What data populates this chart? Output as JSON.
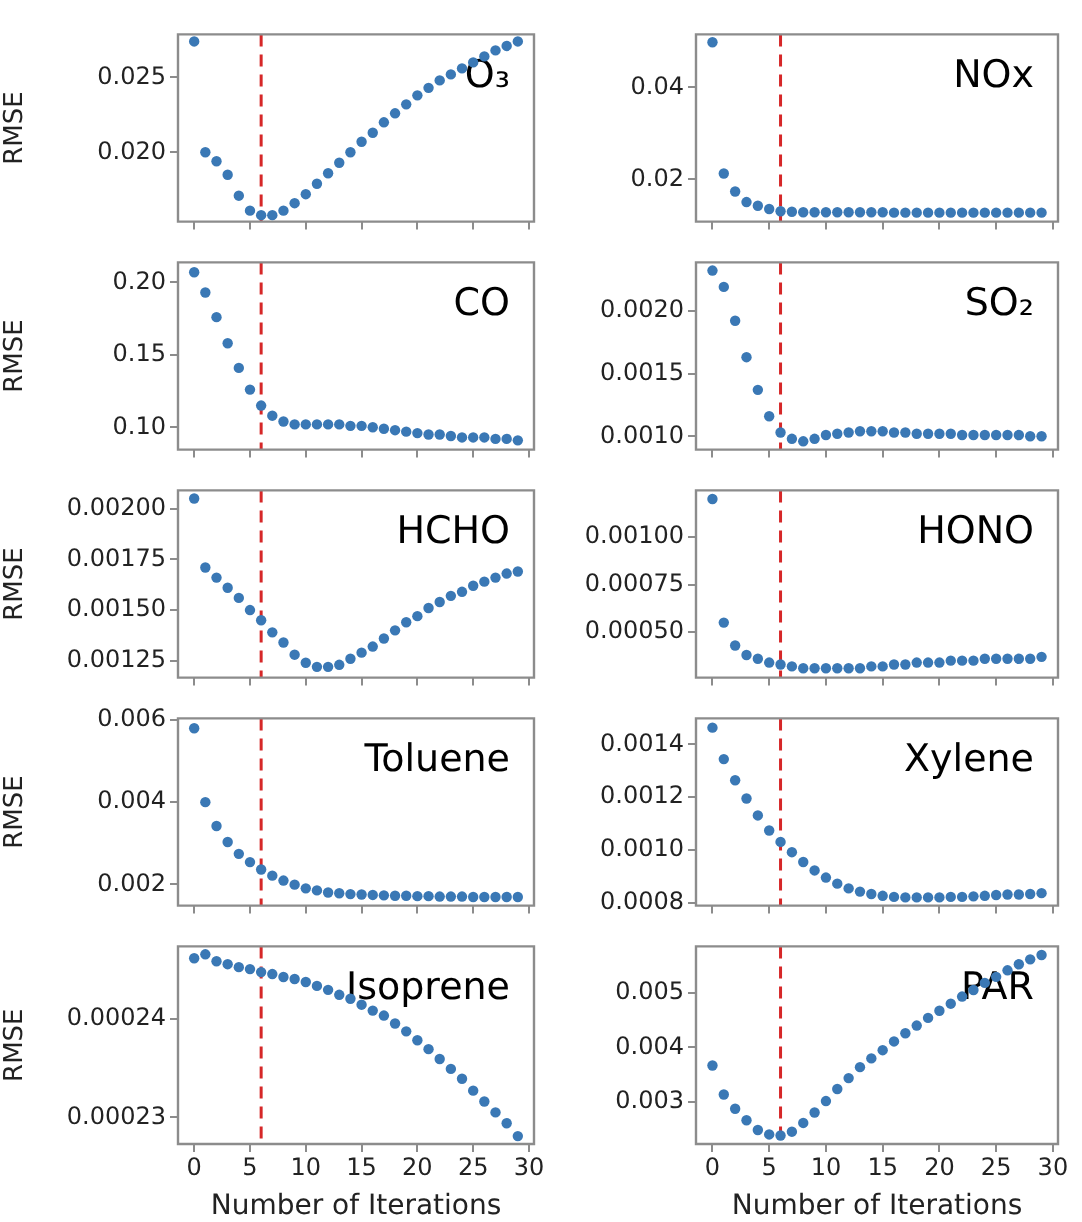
{
  "chart_data": [
    {
      "type": "scatter",
      "ylabel": "RMSE",
      "annotations": [
        "O₃"
      ],
      "tick_labels": "y",
      "marker": "circle",
      "grid": false,
      "legend": false,
      "xlim": [
        -1.45,
        30.45
      ],
      "xticks": [
        0,
        5,
        10,
        15,
        20,
        25,
        30
      ],
      "ylim": [
        0.01537,
        0.02787
      ],
      "yticks": [
        {
          "value": 0.02,
          "label": "0.020"
        },
        {
          "value": 0.025,
          "label": "0.025"
        }
      ],
      "ref_lines": [
        {
          "axis": "x",
          "value": 6,
          "color": "#d62728",
          "line_style": "dashed"
        }
      ],
      "x": [
        0,
        1,
        2,
        3,
        4,
        5,
        6,
        7,
        8,
        9,
        10,
        11,
        12,
        13,
        14,
        15,
        16,
        17,
        18,
        19,
        20,
        21,
        22,
        23,
        24,
        25,
        26,
        27,
        28,
        29
      ],
      "series": [
        {
          "color": "#3a78b5",
          "values": [
            0.0274,
            0.02,
            0.0194,
            0.0185,
            0.0171,
            0.0161,
            0.0158,
            0.0158,
            0.0161,
            0.0166,
            0.0172,
            0.0179,
            0.0186,
            0.0193,
            0.02,
            0.0207,
            0.0213,
            0.022,
            0.0226,
            0.0232,
            0.0238,
            0.0243,
            0.0248,
            0.0252,
            0.0256,
            0.026,
            0.0264,
            0.0268,
            0.0271,
            0.0274
          ]
        }
      ]
    },
    {
      "type": "scatter",
      "annotations": [
        "NOx"
      ],
      "tick_labels": "y",
      "marker": "circle",
      "grid": false,
      "legend": false,
      "xlim": [
        -1.45,
        30.45
      ],
      "xticks": [
        0,
        5,
        10,
        15,
        20,
        25,
        30
      ],
      "ylim": [
        0.01086,
        0.0515
      ],
      "yticks": [
        0.02,
        0.04
      ],
      "ref_lines": [
        {
          "axis": "x",
          "value": 6,
          "color": "#d62728",
          "line_style": "dashed"
        }
      ],
      "x": [
        0,
        1,
        2,
        3,
        4,
        5,
        6,
        7,
        8,
        9,
        10,
        11,
        12,
        13,
        14,
        15,
        16,
        17,
        18,
        19,
        20,
        21,
        22,
        23,
        24,
        25,
        26,
        27,
        28,
        29
      ],
      "series": [
        {
          "color": "#3a78b5",
          "values": [
            0.0498,
            0.0213,
            0.0174,
            0.0151,
            0.0143,
            0.0136,
            0.0131,
            0.013,
            0.0129,
            0.0129,
            0.0129,
            0.0129,
            0.0129,
            0.0129,
            0.0129,
            0.0129,
            0.0128,
            0.0128,
            0.0128,
            0.0128,
            0.0128,
            0.0128,
            0.0128,
            0.0128,
            0.0128,
            0.0128,
            0.0128,
            0.0128,
            0.0128,
            0.0128
          ]
        }
      ]
    },
    {
      "type": "scatter",
      "ylabel": "RMSE",
      "annotations": [
        "CO"
      ],
      "tick_labels": "y",
      "marker": "circle",
      "grid": false,
      "legend": false,
      "xlim": [
        -1.45,
        30.45
      ],
      "xticks": [
        0,
        5,
        10,
        15,
        20,
        25,
        30
      ],
      "ylim": [
        0.0846,
        0.2138
      ],
      "yticks": [
        {
          "value": 0.1,
          "label": "0.10"
        },
        {
          "value": 0.15,
          "label": "0.15"
        },
        {
          "value": 0.2,
          "label": "0.20"
        }
      ],
      "ref_lines": [
        {
          "axis": "x",
          "value": 6,
          "color": "#d62728",
          "line_style": "dashed"
        }
      ],
      "x": [
        0,
        1,
        2,
        3,
        4,
        5,
        6,
        7,
        8,
        9,
        10,
        11,
        12,
        13,
        14,
        15,
        16,
        17,
        18,
        19,
        20,
        21,
        22,
        23,
        24,
        25,
        26,
        27,
        28,
        29
      ],
      "series": [
        {
          "color": "#3a78b5",
          "values": [
            0.207,
            0.193,
            0.176,
            0.158,
            0.141,
            0.126,
            0.115,
            0.108,
            0.104,
            0.102,
            0.102,
            0.102,
            0.102,
            0.102,
            0.101,
            0.101,
            0.1,
            0.099,
            0.098,
            0.097,
            0.096,
            0.095,
            0.095,
            0.094,
            0.093,
            0.093,
            0.093,
            0.092,
            0.092,
            0.091
          ]
        }
      ]
    },
    {
      "type": "scatter",
      "annotations": [
        "SO₂"
      ],
      "tick_labels": "y",
      "marker": "circle",
      "grid": false,
      "legend": false,
      "xlim": [
        -1.45,
        30.45
      ],
      "xticks": [
        0,
        5,
        10,
        15,
        20,
        25,
        30
      ],
      "ylim": [
        0.000894,
        0.002385
      ],
      "yticks": [
        {
          "value": 0.001,
          "label": "0.0010"
        },
        {
          "value": 0.0015,
          "label": "0.0015"
        },
        {
          "value": 0.002,
          "label": "0.0020"
        }
      ],
      "ref_lines": [
        {
          "axis": "x",
          "value": 6,
          "color": "#d62728",
          "line_style": "dashed"
        }
      ],
      "x": [
        0,
        1,
        2,
        3,
        4,
        5,
        6,
        7,
        8,
        9,
        10,
        11,
        12,
        13,
        14,
        15,
        16,
        17,
        18,
        19,
        20,
        21,
        22,
        23,
        24,
        25,
        26,
        27,
        28,
        29
      ],
      "series": [
        {
          "color": "#3a78b5",
          "values": [
            0.00232,
            0.00219,
            0.00192,
            0.00163,
            0.00137,
            0.00116,
            0.00103,
            0.00098,
            0.00096,
            0.00098,
            0.00101,
            0.00102,
            0.00103,
            0.00104,
            0.00104,
            0.00104,
            0.00103,
            0.00103,
            0.00102,
            0.00102,
            0.00102,
            0.00102,
            0.00101,
            0.00101,
            0.00101,
            0.00101,
            0.00101,
            0.00101,
            0.001,
            0.001
          ]
        }
      ]
    },
    {
      "type": "scatter",
      "ylabel": "RMSE",
      "annotations": [
        "HCHO"
      ],
      "tick_labels": "y",
      "marker": "circle",
      "grid": false,
      "legend": false,
      "xlim": [
        -1.45,
        30.45
      ],
      "xticks": [
        0,
        5,
        10,
        15,
        20,
        25,
        30
      ],
      "ylim": [
        0.001167,
        0.00209
      ],
      "yticks": [
        {
          "value": 0.00125,
          "label": "0.00125"
        },
        {
          "value": 0.0015,
          "label": "0.00150"
        },
        {
          "value": 0.00175,
          "label": "0.00175"
        },
        {
          "value": 0.002,
          "label": "0.00200"
        }
      ],
      "ref_lines": [
        {
          "axis": "x",
          "value": 6,
          "color": "#d62728",
          "line_style": "dashed"
        }
      ],
      "x": [
        0,
        1,
        2,
        3,
        4,
        5,
        6,
        7,
        8,
        9,
        10,
        11,
        12,
        13,
        14,
        15,
        16,
        17,
        18,
        19,
        20,
        21,
        22,
        23,
        24,
        25,
        26,
        27,
        28,
        29
      ],
      "series": [
        {
          "color": "#3a78b5",
          "values": [
            0.00205,
            0.00171,
            0.00166,
            0.00161,
            0.00156,
            0.0015,
            0.00145,
            0.00139,
            0.00134,
            0.00128,
            0.00124,
            0.00122,
            0.00122,
            0.00123,
            0.00126,
            0.00129,
            0.00132,
            0.00136,
            0.0014,
            0.00144,
            0.00147,
            0.00151,
            0.00154,
            0.00157,
            0.00159,
            0.00162,
            0.00164,
            0.00166,
            0.00168,
            0.00169
          ]
        }
      ]
    },
    {
      "type": "scatter",
      "annotations": [
        "HONO"
      ],
      "tick_labels": "y",
      "marker": "circle",
      "grid": false,
      "legend": false,
      "xlim": [
        -1.45,
        30.45
      ],
      "xticks": [
        0,
        5,
        10,
        15,
        20,
        25,
        30
      ],
      "ylim": [
        0.000261,
        0.001245
      ],
      "yticks": [
        {
          "value": 0.0005,
          "label": "0.00050"
        },
        {
          "value": 0.00075,
          "label": "0.00075"
        },
        {
          "value": 0.001,
          "label": "0.00100"
        }
      ],
      "ref_lines": [
        {
          "axis": "x",
          "value": 6,
          "color": "#d62728",
          "line_style": "dashed"
        }
      ],
      "x": [
        0,
        1,
        2,
        3,
        4,
        5,
        6,
        7,
        8,
        9,
        10,
        11,
        12,
        13,
        14,
        15,
        16,
        17,
        18,
        19,
        20,
        21,
        22,
        23,
        24,
        25,
        26,
        27,
        28,
        29
      ],
      "series": [
        {
          "color": "#3a78b5",
          "values": [
            0.0012,
            0.00055,
            0.00043,
            0.00038,
            0.00036,
            0.00034,
            0.00033,
            0.00032,
            0.00031,
            0.00031,
            0.00031,
            0.00031,
            0.00031,
            0.00031,
            0.00032,
            0.00032,
            0.00033,
            0.00033,
            0.00034,
            0.00034,
            0.00034,
            0.00035,
            0.00035,
            0.00035,
            0.00036,
            0.00036,
            0.00036,
            0.00036,
            0.00036,
            0.00037
          ]
        }
      ]
    },
    {
      "type": "scatter",
      "ylabel": "RMSE",
      "annotations": [
        "Toluene"
      ],
      "tick_labels": "y",
      "marker": "circle",
      "grid": false,
      "legend": false,
      "xlim": [
        -1.45,
        30.45
      ],
      "xticks": [
        0,
        5,
        10,
        15,
        20,
        25,
        30
      ],
      "ylim": [
        0.00148,
        0.00604
      ],
      "yticks": [
        0.002,
        0.004,
        0.006
      ],
      "ref_lines": [
        {
          "axis": "x",
          "value": 6,
          "color": "#d62728",
          "line_style": "dashed"
        }
      ],
      "x": [
        0,
        1,
        2,
        3,
        4,
        5,
        6,
        7,
        8,
        9,
        10,
        11,
        12,
        13,
        14,
        15,
        16,
        17,
        18,
        19,
        20,
        21,
        22,
        23,
        24,
        25,
        26,
        27,
        28,
        29
      ],
      "series": [
        {
          "color": "#3a78b5",
          "values": [
            0.0058,
            0.004,
            0.00342,
            0.00303,
            0.00274,
            0.00254,
            0.00236,
            0.00221,
            0.00209,
            0.00199,
            0.0019,
            0.00185,
            0.0018,
            0.00178,
            0.00176,
            0.00175,
            0.00174,
            0.00173,
            0.00172,
            0.00172,
            0.00171,
            0.00171,
            0.0017,
            0.0017,
            0.0017,
            0.00169,
            0.00169,
            0.00169,
            0.00169,
            0.00169
          ]
        }
      ]
    },
    {
      "type": "scatter",
      "annotations": [
        "Xylene"
      ],
      "tick_labels": "y",
      "marker": "circle",
      "grid": false,
      "legend": false,
      "xlim": [
        -1.45,
        30.45
      ],
      "xticks": [
        0,
        5,
        10,
        15,
        20,
        25,
        30
      ],
      "ylim": [
        0.00079,
        0.001498
      ],
      "yticks": [
        {
          "value": 0.0008,
          "label": "0.0008"
        },
        {
          "value": 0.001,
          "label": "0.0010"
        },
        {
          "value": 0.0012,
          "label": "0.0012"
        },
        {
          "value": 0.0014,
          "label": "0.0014"
        }
      ],
      "ref_lines": [
        {
          "axis": "x",
          "value": 6,
          "color": "#d62728",
          "line_style": "dashed"
        }
      ],
      "x": [
        0,
        1,
        2,
        3,
        4,
        5,
        6,
        7,
        8,
        9,
        10,
        11,
        12,
        13,
        14,
        15,
        16,
        17,
        18,
        19,
        20,
        21,
        22,
        23,
        24,
        25,
        26,
        27,
        28,
        29
      ],
      "series": [
        {
          "color": "#3a78b5",
          "values": [
            0.001463,
            0.001344,
            0.001264,
            0.001195,
            0.001131,
            0.001074,
            0.001031,
            0.000992,
            0.000955,
            0.000923,
            0.000896,
            0.000873,
            0.000855,
            0.000843,
            0.000834,
            0.000827,
            0.000823,
            0.000821,
            0.000821,
            0.000821,
            0.000821,
            0.000823,
            0.000823,
            0.000825,
            0.000827,
            0.00083,
            0.000832,
            0.000832,
            0.000834,
            0.000837
          ]
        }
      ]
    },
    {
      "type": "scatter",
      "ylabel": "RMSE",
      "xlabel": "Number of Iterations",
      "annotations": [
        "Isoprene"
      ],
      "marker": "circle",
      "grid": false,
      "legend": false,
      "xlim": [
        -1.45,
        30.45
      ],
      "xticks": [
        0,
        5,
        10,
        15,
        20,
        25,
        30
      ],
      "ylim": [
        0.0002273,
        0.0002473
      ],
      "yticks": [
        0.00023,
        0.00024
      ],
      "ref_lines": [
        {
          "axis": "x",
          "value": 6,
          "color": "#d62728",
          "line_style": "dashed"
        }
      ],
      "x": [
        0,
        1,
        2,
        3,
        4,
        5,
        6,
        7,
        8,
        9,
        10,
        11,
        12,
        13,
        14,
        15,
        16,
        17,
        18,
        19,
        20,
        21,
        22,
        23,
        24,
        25,
        26,
        27,
        28,
        29
      ],
      "series": [
        {
          "color": "#3a78b5",
          "values": [
            0.0002461,
            0.0002465,
            0.0002458,
            0.0002455,
            0.0002452,
            0.000245,
            0.0002447,
            0.0002445,
            0.0002442,
            0.000244,
            0.0002437,
            0.0002433,
            0.0002429,
            0.0002424,
            0.000242,
            0.0002414,
            0.0002408,
            0.0002403,
            0.0002395,
            0.0002387,
            0.0002378,
            0.0002369,
            0.0002359,
            0.0002349,
            0.0002339,
            0.0002327,
            0.0002316,
            0.0002305,
            0.0002294,
            0.0002281
          ]
        }
      ]
    },
    {
      "type": "scatter",
      "xlabel": "Number of Iterations",
      "annotations": [
        "PAR"
      ],
      "marker": "circle",
      "grid": false,
      "legend": false,
      "xlim": [
        -1.45,
        30.45
      ],
      "xticks": [
        0,
        5,
        10,
        15,
        20,
        25,
        30
      ],
      "ylim": [
        0.002235,
        0.005847
      ],
      "yticks": [
        0.003,
        0.004,
        0.005
      ],
      "ref_lines": [
        {
          "axis": "x",
          "value": 6,
          "color": "#d62728",
          "line_style": "dashed"
        }
      ],
      "x": [
        0,
        1,
        2,
        3,
        4,
        5,
        6,
        7,
        8,
        9,
        10,
        11,
        12,
        13,
        14,
        15,
        16,
        17,
        18,
        19,
        20,
        21,
        22,
        23,
        24,
        25,
        26,
        27,
        28,
        29
      ],
      "series": [
        {
          "color": "#3a78b5",
          "values": [
            0.00367,
            0.00314,
            0.00288,
            0.00267,
            0.00249,
            0.00241,
            0.00239,
            0.00246,
            0.00262,
            0.00281,
            0.00302,
            0.00324,
            0.00344,
            0.00364,
            0.0038,
            0.00395,
            0.00411,
            0.00426,
            0.0044,
            0.00454,
            0.00467,
            0.0048,
            0.00493,
            0.00505,
            0.00518,
            0.00529,
            0.00541,
            0.00552,
            0.00561,
            0.00569
          ]
        }
      ]
    }
  ]
}
